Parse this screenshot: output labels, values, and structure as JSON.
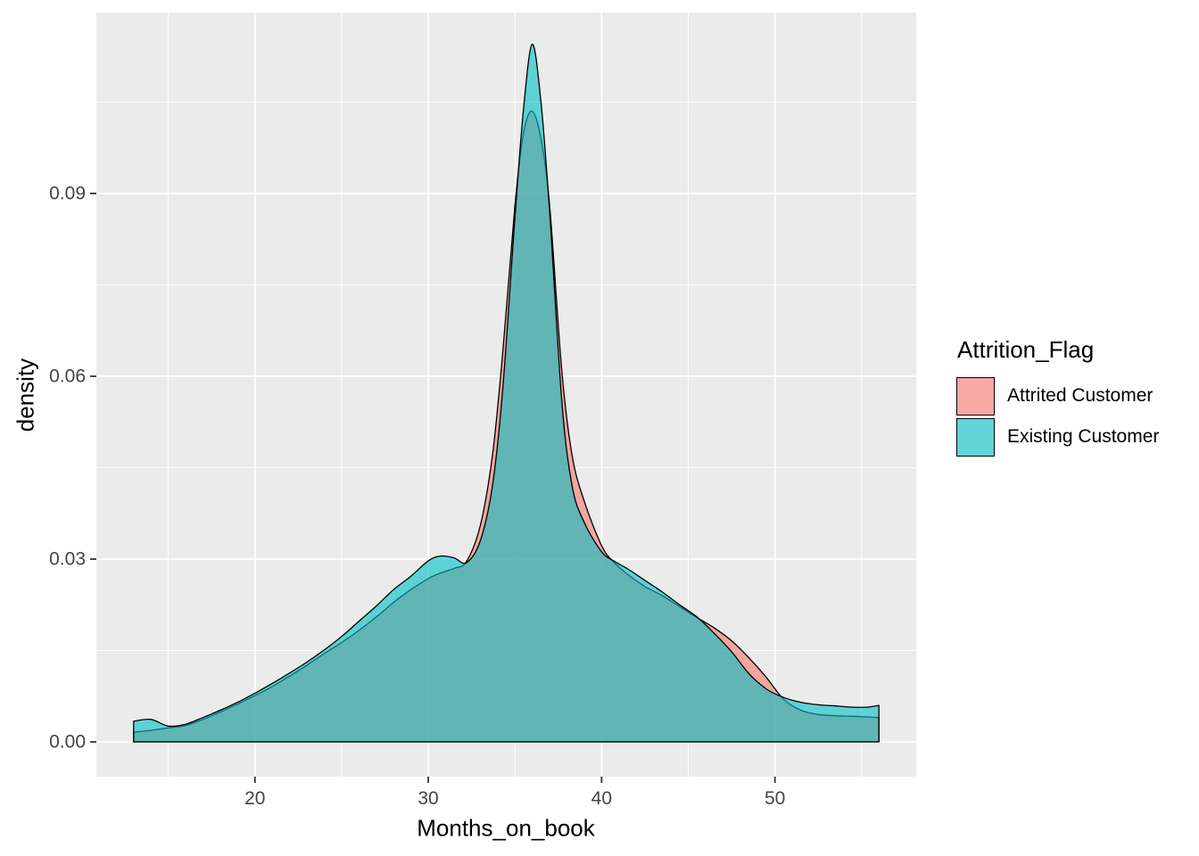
{
  "chart_data": {
    "type": "area",
    "subtype": "density",
    "title": "",
    "xlabel": "Months_on_book",
    "ylabel": "density",
    "xlim": [
      10.85,
      58.15
    ],
    "ylim": [
      -0.0057,
      0.1197
    ],
    "x_ticks": [
      20,
      30,
      40,
      50
    ],
    "x_tick_labels": [
      "20",
      "30",
      "40",
      "50"
    ],
    "x_minor_ticks": [
      15,
      25,
      35,
      45,
      55
    ],
    "y_ticks": [
      0,
      0.03,
      0.06,
      0.09
    ],
    "y_tick_labels": [
      "0.00",
      "0.03",
      "0.06",
      "0.09"
    ],
    "y_minor_ticks": [
      0.015,
      0.045,
      0.075,
      0.105
    ],
    "grid": true,
    "legend_position": "right",
    "legend_title": "Attrition_Flag",
    "x": [
      13,
      14,
      15,
      16,
      17,
      18,
      19,
      20,
      21,
      22,
      23,
      24,
      25,
      26,
      27,
      28,
      29,
      30,
      30.7,
      31.5,
      32.2,
      33,
      33.7,
      34.3,
      35,
      35.5,
      36,
      36.5,
      37,
      37.7,
      38.3,
      39,
      40,
      40.7,
      41.5,
      42.5,
      43.5,
      44.5,
      45.5,
      46.5,
      47.5,
      48.5,
      49.5,
      50.5,
      51.5,
      52.5,
      53.5,
      54.5,
      55.3,
      56
    ],
    "series": [
      {
        "name": "Attrited Customer",
        "fill": "#F8766D",
        "stroke": "#000000",
        "fill_opacity": 0.6,
        "density": [
          0.0016,
          0.0019,
          0.0023,
          0.0027,
          0.0037,
          0.0049,
          0.0062,
          0.0076,
          0.0091,
          0.0108,
          0.0126,
          0.0145,
          0.0163,
          0.0183,
          0.0205,
          0.0229,
          0.025,
          0.0268,
          0.0277,
          0.0285,
          0.0296,
          0.0355,
          0.047,
          0.064,
          0.088,
          0.1,
          0.1035,
          0.099,
          0.088,
          0.061,
          0.047,
          0.0395,
          0.0322,
          0.0295,
          0.0275,
          0.0255,
          0.024,
          0.0222,
          0.0204,
          0.0187,
          0.0166,
          0.0138,
          0.0106,
          0.007,
          0.0052,
          0.0045,
          0.0043,
          0.0042,
          0.0041,
          0.004
        ]
      },
      {
        "name": "Existing Customer",
        "fill": "#00BFC4",
        "stroke": "#000000",
        "fill_opacity": 0.6,
        "density": [
          0.0034,
          0.0037,
          0.0026,
          0.0029,
          0.004,
          0.0052,
          0.0065,
          0.008,
          0.0096,
          0.0113,
          0.0131,
          0.0151,
          0.0173,
          0.0198,
          0.0223,
          0.025,
          0.0272,
          0.0297,
          0.0305,
          0.0302,
          0.0294,
          0.033,
          0.042,
          0.058,
          0.086,
          0.104,
          0.1145,
          0.105,
          0.087,
          0.056,
          0.042,
          0.036,
          0.0312,
          0.0297,
          0.0284,
          0.0265,
          0.0246,
          0.0225,
          0.0205,
          0.0178,
          0.0148,
          0.0112,
          0.0087,
          0.0073,
          0.0065,
          0.0061,
          0.0059,
          0.0057,
          0.0057,
          0.006
        ]
      }
    ]
  },
  "axes": {
    "x_title": "Months_on_book",
    "y_title": "density"
  },
  "legend": {
    "title": "Attrition_Flag",
    "items": [
      {
        "label": "Attrited Customer",
        "swatch_fill": "#F8766D"
      },
      {
        "label": "Existing Customer",
        "swatch_fill": "#00BFC4"
      }
    ]
  },
  "colors": {
    "figure_bg": "#FFFFFF",
    "panel_bg": "#EBEBEB",
    "gridline": "#FFFFFF",
    "tick_mark": "#333333",
    "axis_text": "#444444",
    "title_text": "#000000",
    "curve_outline": "#000000",
    "legend_key_bg": "#F2F2F2"
  }
}
